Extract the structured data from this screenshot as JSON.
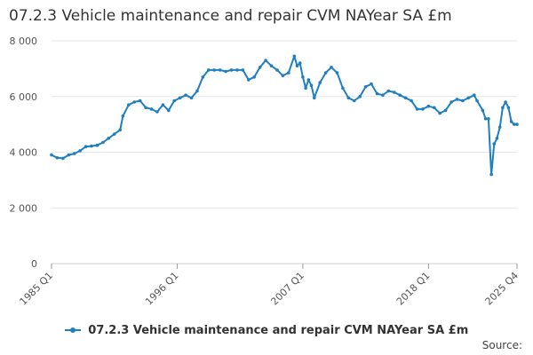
{
  "chart_data": {
    "type": "line",
    "title": "07.2.3 Vehicle maintenance and repair CVM NAYear SA £m",
    "xlabel": "",
    "ylabel": "",
    "ylim": [
      0,
      8000
    ],
    "yticks": [
      "0",
      "2 000",
      "4 000",
      "6 000",
      "8 000"
    ],
    "yticks_values": [
      0,
      2000,
      4000,
      6000,
      8000
    ],
    "xlim": [
      "1985 Q1",
      "2025 Q4"
    ],
    "xticks": [
      "1985 Q1",
      "1996 Q1",
      "2007 Q1",
      "2018 Q1",
      "2025 Q4"
    ],
    "grid": true,
    "legend_position": "bottom",
    "series": [
      {
        "name": "07.2.3 Vehicle maintenance and repair CVM NAYear SA £m",
        "color": "#1f7fc1",
        "points": [
          [
            "1985 Q1",
            3900
          ],
          [
            "1985 Q3",
            3800
          ],
          [
            "1986 Q1",
            3780
          ],
          [
            "1986 Q3",
            3900
          ],
          [
            "1987 Q1",
            3950
          ],
          [
            "1987 Q3",
            4050
          ],
          [
            "1988 Q1",
            4200
          ],
          [
            "1988 Q3",
            4220
          ],
          [
            "1989 Q1",
            4250
          ],
          [
            "1989 Q3",
            4350
          ],
          [
            "1990 Q1",
            4500
          ],
          [
            "1990 Q3",
            4650
          ],
          [
            "1991 Q1",
            4800
          ],
          [
            "1991 Q2",
            5300
          ],
          [
            "1991 Q4",
            5700
          ],
          [
            "1992 Q2",
            5800
          ],
          [
            "1992 Q4",
            5850
          ],
          [
            "1993 Q2",
            5600
          ],
          [
            "1993 Q4",
            5550
          ],
          [
            "1994 Q2",
            5450
          ],
          [
            "1994 Q4",
            5700
          ],
          [
            "1995 Q2",
            5500
          ],
          [
            "1995 Q4",
            5850
          ],
          [
            "1996 Q2",
            5950
          ],
          [
            "1996 Q4",
            6050
          ],
          [
            "1997 Q2",
            5950
          ],
          [
            "1997 Q4",
            6200
          ],
          [
            "1998 Q2",
            6700
          ],
          [
            "1998 Q4",
            6950
          ],
          [
            "1999 Q2",
            6950
          ],
          [
            "1999 Q4",
            6950
          ],
          [
            "2000 Q2",
            6900
          ],
          [
            "2000 Q4",
            6950
          ],
          [
            "2001 Q2",
            6950
          ],
          [
            "2001 Q4",
            6950
          ],
          [
            "2002 Q2",
            6600
          ],
          [
            "2002 Q4",
            6700
          ],
          [
            "2003 Q2",
            7050
          ],
          [
            "2003 Q4",
            7300
          ],
          [
            "2004 Q2",
            7100
          ],
          [
            "2004 Q4",
            6950
          ],
          [
            "2005 Q2",
            6750
          ],
          [
            "2005 Q4",
            6850
          ],
          [
            "2006 Q2",
            7450
          ],
          [
            "2006 Q3",
            7100
          ],
          [
            "2006 Q4",
            7200
          ],
          [
            "2007 Q1",
            6700
          ],
          [
            "2007 Q2",
            6300
          ],
          [
            "2007 Q3",
            6600
          ],
          [
            "2007 Q4",
            6400
          ],
          [
            "2008 Q1",
            5950
          ],
          [
            "2008 Q3",
            6500
          ],
          [
            "2009 Q1",
            6850
          ],
          [
            "2009 Q3",
            7050
          ],
          [
            "2010 Q1",
            6850
          ],
          [
            "2010 Q3",
            6300
          ],
          [
            "2011 Q1",
            5950
          ],
          [
            "2011 Q3",
            5850
          ],
          [
            "2012 Q1",
            6000
          ],
          [
            "2012 Q3",
            6350
          ],
          [
            "2013 Q1",
            6450
          ],
          [
            "2013 Q3",
            6100
          ],
          [
            "2014 Q1",
            6050
          ],
          [
            "2014 Q3",
            6200
          ],
          [
            "2015 Q1",
            6150
          ],
          [
            "2015 Q3",
            6050
          ],
          [
            "2016 Q1",
            5950
          ],
          [
            "2016 Q3",
            5850
          ],
          [
            "2017 Q1",
            5550
          ],
          [
            "2017 Q3",
            5550
          ],
          [
            "2018 Q1",
            5650
          ],
          [
            "2018 Q3",
            5600
          ],
          [
            "2019 Q1",
            5400
          ],
          [
            "2019 Q3",
            5500
          ],
          [
            "2020 Q1",
            5800
          ],
          [
            "2020 Q3",
            5900
          ],
          [
            "2021 Q1",
            5850
          ],
          [
            "2021 Q3",
            5950
          ],
          [
            "2022 Q1",
            6050
          ],
          [
            "2022 Q2",
            5850
          ],
          [
            "2022 Q4",
            5500
          ],
          [
            "2023 Q1",
            5200
          ],
          [
            "2023 Q2",
            5200
          ],
          [
            "2023 Q3",
            3200
          ],
          [
            "2023 Q4",
            4300
          ],
          [
            "2024 Q1",
            4500
          ],
          [
            "2024 Q2",
            4900
          ],
          [
            "2024 Q3",
            5600
          ],
          [
            "2024 Q4",
            5800
          ],
          [
            "2025 Q1",
            5600
          ],
          [
            "2025 Q2",
            5100
          ],
          [
            "2025 Q3",
            5000
          ],
          [
            "2025 Q4",
            5000
          ]
        ]
      }
    ]
  },
  "source_label": "Source:"
}
